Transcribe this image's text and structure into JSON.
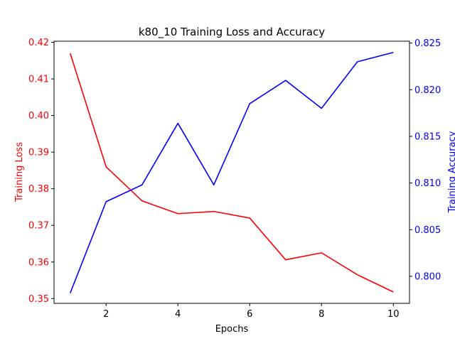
{
  "chart_data": {
    "type": "line",
    "title": "k80_10 Training Loss and Accuracy",
    "xlabel": "Epochs",
    "xlim": [
      0.55,
      10.45
    ],
    "xticks": [
      2,
      4,
      6,
      8,
      10
    ],
    "x": [
      1,
      2,
      3,
      4,
      5,
      6,
      7,
      8,
      9,
      10
    ],
    "left_axis": {
      "label": "Training Loss",
      "color": "#ff0000",
      "ylim": [
        0.3487,
        0.4203
      ],
      "ticks": [
        "0.35",
        "0.36",
        "0.37",
        "0.38",
        "0.39",
        "0.40",
        "0.41",
        "0.42"
      ],
      "tick_values": [
        0.35,
        0.36,
        0.37,
        0.38,
        0.39,
        0.4,
        0.41,
        0.42
      ]
    },
    "right_axis": {
      "label": "Training Accuracy",
      "color": "#0000ff",
      "ylim": [
        0.7971,
        0.8252
      ],
      "ticks": [
        "0.800",
        "0.805",
        "0.810",
        "0.815",
        "0.820",
        "0.825"
      ],
      "tick_values": [
        0.8,
        0.805,
        0.81,
        0.815,
        0.82,
        0.825
      ]
    },
    "series": [
      {
        "axis": "left",
        "color": "#ff0000",
        "values": [
          0.417,
          0.386,
          0.3767,
          0.3732,
          0.3738,
          0.372,
          0.3606,
          0.3625,
          0.3565,
          0.3518
        ]
      },
      {
        "axis": "right",
        "color": "#0000ff",
        "values": [
          0.7982,
          0.808,
          0.8098,
          0.8164,
          0.8098,
          0.8185,
          0.821,
          0.818,
          0.823,
          0.824
        ]
      }
    ],
    "grid": false
  }
}
